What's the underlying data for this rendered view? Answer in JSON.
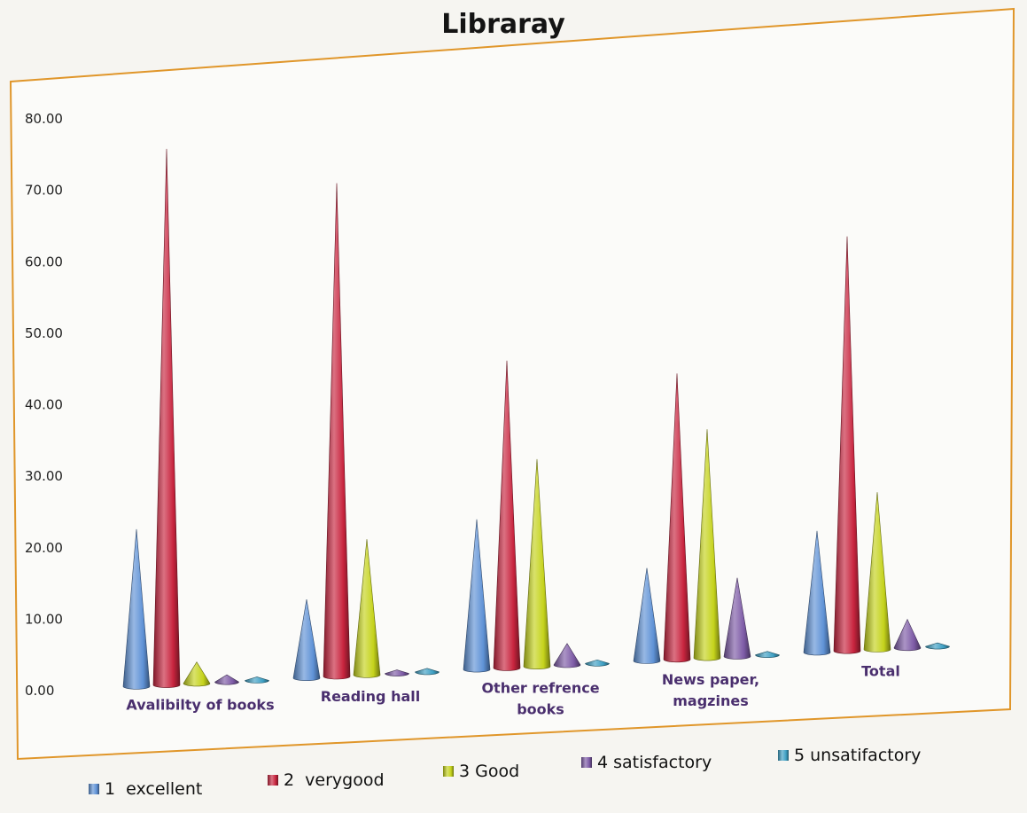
{
  "chart_data": {
    "type": "bar",
    "title": "Libraray",
    "categories": [
      "Avalibilty of books",
      "Reading hall",
      "Other refrence books",
      "News paper, magzines",
      "Total"
    ],
    "y_ticks": [
      "0.00",
      "10.00",
      "20.00",
      "30.00",
      "40.00",
      "50.00",
      "60.00",
      "70.00",
      "80.00"
    ],
    "ylim": [
      0,
      80
    ],
    "series": [
      {
        "name": "1  excellent",
        "color": "#5f92d6",
        "values": [
          22,
          11,
          21,
          13,
          17
        ]
      },
      {
        "name": "2  verygood",
        "color": "#c8243e",
        "values": [
          75,
          69,
          43,
          40,
          58
        ]
      },
      {
        "name": "3 Good",
        "color": "#c5d31b",
        "values": [
          3,
          19,
          29,
          32,
          22
        ]
      },
      {
        "name": "4 satisfactory",
        "color": "#7d5ba6",
        "values": [
          1,
          0.5,
          3,
          11,
          4
        ]
      },
      {
        "name": "5 unsatifactory",
        "color": "#3ea0c4",
        "values": [
          0.5,
          0.5,
          0.5,
          0.5,
          0.5
        ]
      }
    ],
    "legend": "bottom",
    "grid": false,
    "style": "3d-cone"
  }
}
